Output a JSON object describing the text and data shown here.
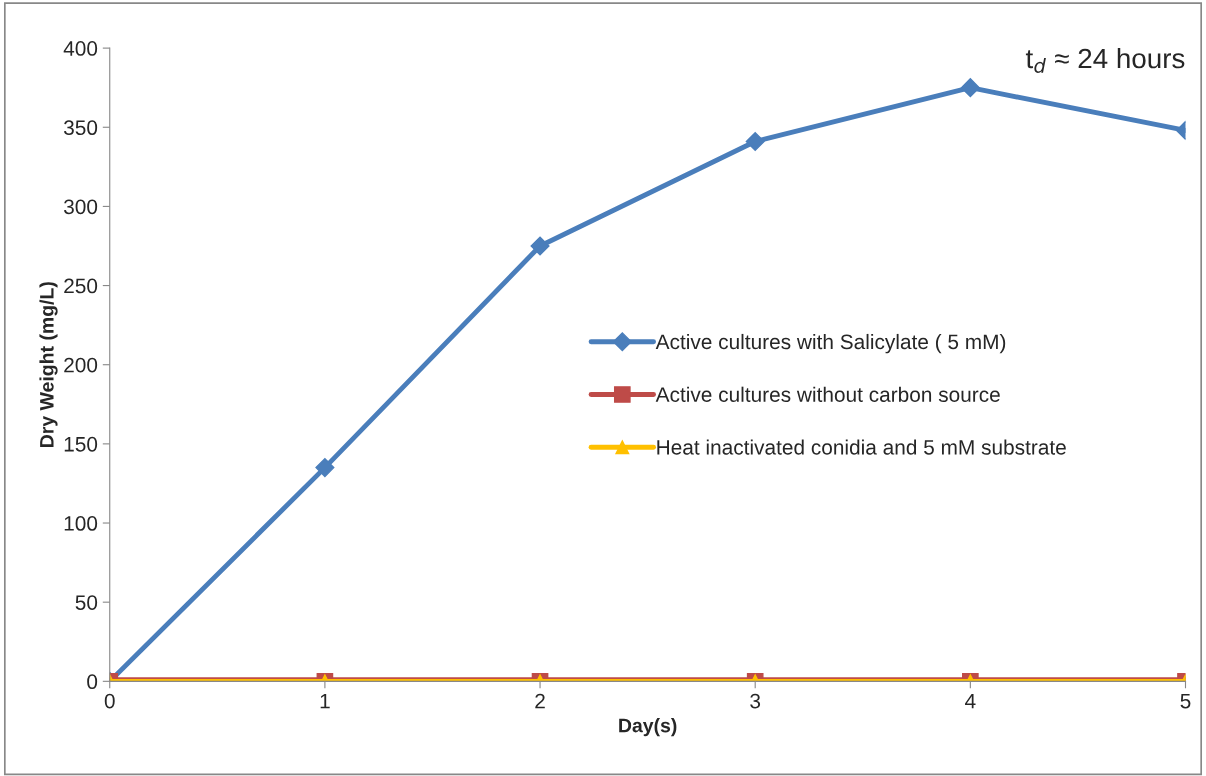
{
  "chart_data": {
    "type": "line",
    "xlabel": "Day(s)",
    "ylabel": "Dry Weight (mg/L)",
    "x": [
      0,
      1,
      2,
      3,
      4,
      5
    ],
    "series": [
      {
        "name": "Active cultures with Salicylate ( 5 mM)",
        "color": "#4a7ebb",
        "marker": "diamond",
        "values": [
          0,
          135,
          275,
          341,
          375,
          348
        ]
      },
      {
        "name": "Active cultures without carbon source",
        "color": "#be4b48",
        "marker": "square",
        "values": [
          0,
          0,
          0,
          0,
          0,
          0
        ]
      },
      {
        "name": "Heat inactivated conidia and 5 mM substrate",
        "color": "#ffc000",
        "marker": "triangle",
        "values": [
          0,
          0,
          0,
          0,
          0,
          0
        ]
      }
    ],
    "xlim": [
      0,
      5
    ],
    "xticks": [
      0,
      1,
      2,
      3,
      4,
      5
    ],
    "ylim": [
      0,
      400
    ],
    "yticks": [
      0,
      50,
      100,
      150,
      200,
      250,
      300,
      350,
      400
    ],
    "annotations": [
      "t$_{d}$ ≈ 24 hours"
    ],
    "legend": "right",
    "grid": false,
    "line_style": "solid"
  }
}
